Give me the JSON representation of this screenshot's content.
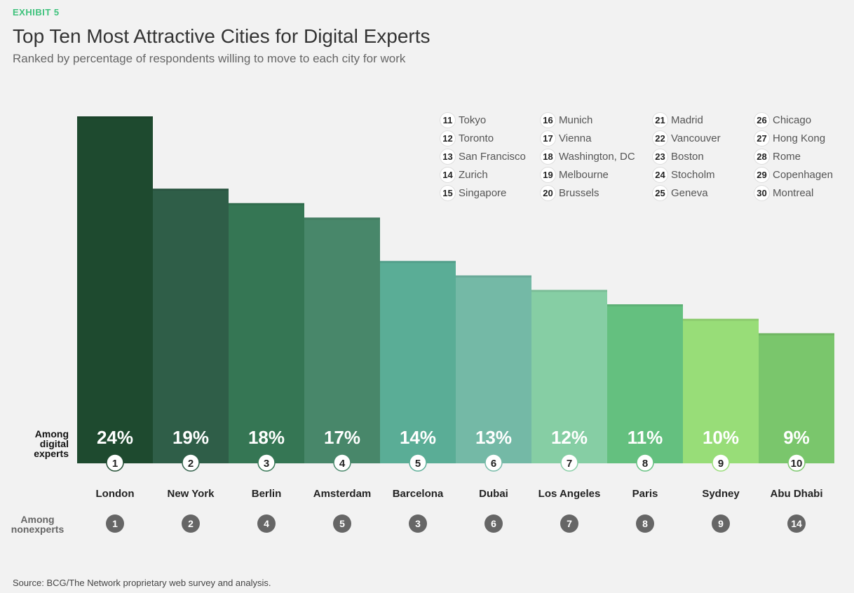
{
  "header": {
    "exhibit": "EXHIBIT 5",
    "title": "Top Ten Most Attractive Cities for Digital Experts",
    "subtitle": "Ranked by percentage of respondents willing to move to each city for work"
  },
  "row_labels": {
    "experts_line1": "Among",
    "experts_line2": "digital",
    "experts_line3": "experts",
    "nonexperts_line1": "Among",
    "nonexperts_line2": "nonexperts"
  },
  "chart_data": {
    "type": "bar",
    "title": "Top Ten Most Attractive Cities for Digital Experts",
    "categories": [
      "London",
      "New York",
      "Berlin",
      "Amsterdam",
      "Barcelona",
      "Dubai",
      "Los Angeles",
      "Paris",
      "Sydney",
      "Abu Dhabi"
    ],
    "series": [
      {
        "name": "Among digital experts",
        "values": [
          24,
          19,
          18,
          17,
          14,
          13,
          12,
          11,
          10,
          9
        ]
      }
    ],
    "value_labels": [
      "24%",
      "19%",
      "18%",
      "17%",
      "14%",
      "13%",
      "12%",
      "11%",
      "10%",
      "9%"
    ],
    "expert_rank": [
      "1",
      "2",
      "3",
      "4",
      "5",
      "6",
      "7",
      "8",
      "9",
      "10"
    ],
    "nonexpert_rank": [
      "1",
      "2",
      "4",
      "5",
      "3",
      "6",
      "7",
      "8",
      "9",
      "14"
    ],
    "bar_colors": [
      "#1e4a2f",
      "#2f5e48",
      "#357654",
      "#48876a",
      "#5aad96",
      "#74b9a6",
      "#86cea4",
      "#64c07f",
      "#98dd78",
      "#7ac66c"
    ],
    "ylim": [
      0,
      24
    ],
    "grid": false
  },
  "legend": [
    {
      "num": "11",
      "city": "Tokyo"
    },
    {
      "num": "12",
      "city": "Toronto"
    },
    {
      "num": "13",
      "city": "San Francisco"
    },
    {
      "num": "14",
      "city": "Zurich"
    },
    {
      "num": "15",
      "city": "Singapore"
    },
    {
      "num": "16",
      "city": "Munich"
    },
    {
      "num": "17",
      "city": "Vienna"
    },
    {
      "num": "18",
      "city": "Washington, DC"
    },
    {
      "num": "19",
      "city": "Melbourne"
    },
    {
      "num": "20",
      "city": "Brussels"
    },
    {
      "num": "21",
      "city": "Madrid"
    },
    {
      "num": "22",
      "city": "Vancouver"
    },
    {
      "num": "23",
      "city": "Boston"
    },
    {
      "num": "24",
      "city": "Stocholm"
    },
    {
      "num": "25",
      "city": "Geneva"
    },
    {
      "num": "26",
      "city": "Chicago"
    },
    {
      "num": "27",
      "city": "Hong Kong"
    },
    {
      "num": "28",
      "city": "Rome"
    },
    {
      "num": "29",
      "city": "Copenhagen"
    },
    {
      "num": "30",
      "city": "Montreal"
    }
  ],
  "source": {
    "label": "Source:",
    "text": "BCG/The Network proprietary web survey and analysis."
  }
}
